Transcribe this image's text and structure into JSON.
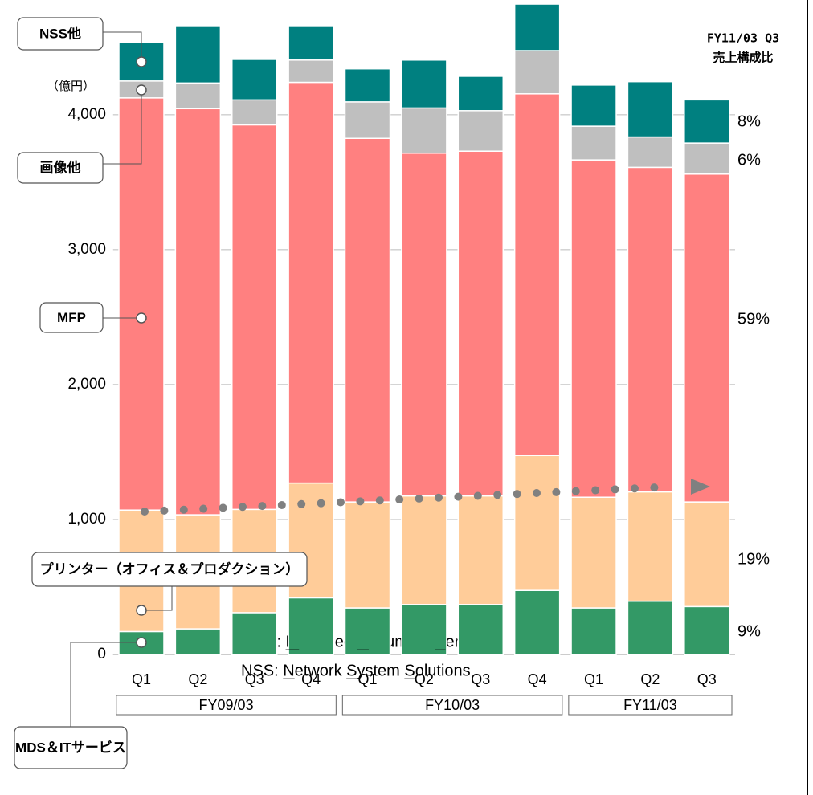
{
  "chart_data": {
    "type": "stacked_bar",
    "header": [
      "FY11/03 Q3",
      "売上構成比"
    ],
    "unit_label": "（億円）",
    "categories": [
      "Q1",
      "Q2",
      "Q3",
      "Q4",
      "Q1",
      "Q2",
      "Q3",
      "Q4",
      "Q1",
      "Q2",
      "Q3"
    ],
    "groups": [
      {
        "label": "FY09/03",
        "span": [
          0,
          3
        ]
      },
      {
        "label": "FY10/03",
        "span": [
          4,
          7
        ]
      },
      {
        "label": "FY11/03",
        "span": [
          8,
          10
        ]
      }
    ],
    "series": [
      {
        "name": "MDS＆ITサービス",
        "color": "#339966",
        "values": [
          170,
          190,
          310,
          420,
          345,
          370,
          370,
          475,
          345,
          395,
          355
        ]
      },
      {
        "name": "プリンター（オフィス＆プロダクション）",
        "color": "#ffcc99",
        "values": [
          900,
          845,
          765,
          850,
          785,
          805,
          805,
          1000,
          820,
          810,
          775
        ]
      },
      {
        "name": "MFP",
        "color": "#ff8080",
        "values": [
          3055,
          3010,
          2850,
          2970,
          2695,
          2540,
          2555,
          2680,
          2500,
          2405,
          2430
        ]
      },
      {
        "name": "画像他",
        "color": "#bfbfbf",
        "values": [
          125,
          190,
          185,
          165,
          270,
          335,
          300,
          320,
          250,
          225,
          230
        ]
      },
      {
        "name": "NSS他",
        "color": "#008080",
        "values": [
          285,
          425,
          300,
          255,
          245,
          355,
          255,
          345,
          305,
          410,
          320
        ]
      }
    ],
    "annotations": [
      "9%",
      "19%",
      "59%",
      "6%",
      "8%"
    ],
    "ylim": [
      0,
      4850
    ],
    "yticks": [
      0,
      {
        "value": 1000,
        "label": "1,000"
      },
      {
        "value": 2000,
        "label": "2,000"
      },
      {
        "value": 3000,
        "label": "3,000"
      },
      {
        "value": 4000,
        "label": "4,000"
      }
    ],
    "grid": true,
    "footnotes": [
      "MDS: Managed Document Service",
      "NSS: Network System Solutions"
    ]
  }
}
